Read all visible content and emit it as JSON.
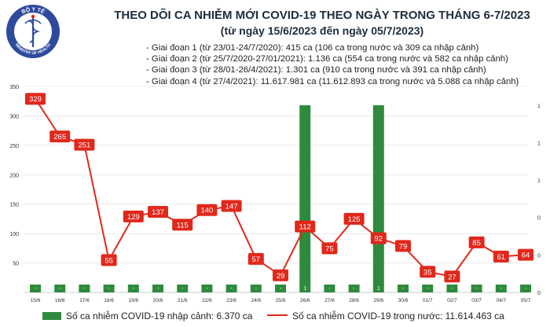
{
  "header": {
    "title": "THEO DÕI CA NHIỄM MỚI COVID-19 THEO NGÀY TRONG THÁNG 6-7/2023",
    "subtitle": "(từ ngày 15/6/2023 đến ngày 05/7/2023)",
    "phases": [
      "- Giai đoạn 1 (từ 23/01-24/7/2020): 415 ca (106 ca trong nước và 309 ca nhập cảnh)",
      "- Giai đoạn 2 (từ 25/7/2020-27/01/2021): 1.136 ca (554 ca trong nước và 582 ca nhập cảnh)",
      "- Giai đoạn 3 (từ 28/01-26/4/2021): 1.301 ca (910 ca trong nước và 391 ca nhập cảnh)",
      "- Giai đoạn 4 (từ 27/4/2021): 11.617.981 ca (11.612.893 ca trong nước và 5.088 ca nhập cảnh)"
    ]
  },
  "logo": {
    "top_text": "BỘ Y TẾ",
    "bottom_text": "MINISTRY OF HEALTH",
    "icon": "caduceus-emblem-icon"
  },
  "colors": {
    "bar": "#2e8b3e",
    "line": "#e0281b",
    "label_bg": "#e0281b",
    "label_text": "#ffffff",
    "axis_text": "#333333",
    "grid": "#dddddd"
  },
  "chart_data": {
    "type": "bar+line",
    "categories": [
      "15/6",
      "16/6",
      "17/6",
      "18/6",
      "19/6",
      "20/6",
      "21/6",
      "22/6",
      "23/6",
      "24/6",
      "25/6",
      "26/6",
      "27/6",
      "28/6",
      "29/6",
      "30/6",
      "01/7",
      "02/7",
      "03/7",
      "04/7",
      "05/7"
    ],
    "series": [
      {
        "name": "Số ca nhiễm COVID-19 nhập cảnh: 6.370 ca",
        "type": "bar",
        "axis": "right",
        "values": [
          0,
          0,
          0,
          0,
          0,
          0,
          0,
          0,
          0,
          0,
          0,
          1,
          0,
          0,
          1,
          0,
          0,
          0,
          0,
          0,
          0
        ],
        "labels": [
          "-",
          "-",
          "-",
          "-",
          "-",
          "-",
          "-",
          "-",
          "-",
          "-",
          "-",
          "1",
          "-",
          "-",
          "1",
          "-",
          "-",
          "-",
          "-",
          "-",
          "-"
        ]
      },
      {
        "name": "Số ca nhiễm COVID-19 trong nước: 11.614.463 ca",
        "type": "line",
        "axis": "left",
        "values": [
          329,
          265,
          251,
          55,
          129,
          137,
          115,
          140,
          147,
          57,
          29,
          112,
          75,
          125,
          92,
          79,
          35,
          27,
          85,
          61,
          64
        ]
      }
    ],
    "ylim_left": [
      0,
      350
    ],
    "yticks_left": [
      "50",
      "100",
      "150",
      "200",
      "250",
      "300",
      "350"
    ],
    "ylim_right": [
      0,
      1.1
    ],
    "yticks_right": [
      "0",
      "0",
      "0",
      "1",
      "1",
      "1"
    ],
    "grid": true
  },
  "legend": {
    "bar_label": "Số ca nhiễm COVID-19 nhập cảnh: 6.370 ca",
    "line_label": "Số ca nhiễm COVID-19 trong nước: 11.614.463 ca"
  }
}
